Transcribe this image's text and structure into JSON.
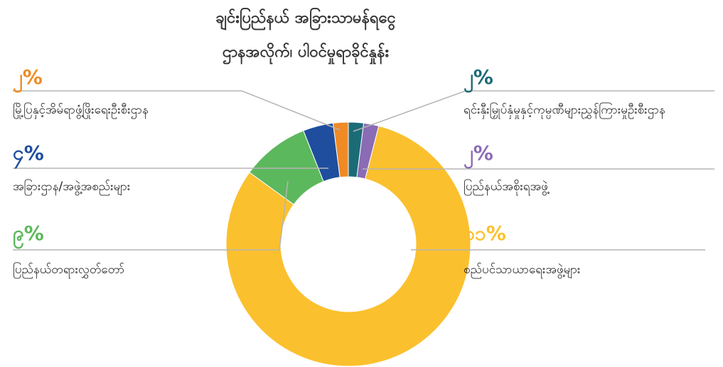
{
  "chart_data": {
    "type": "donut",
    "title": [
      "ချင်းပြည်နယ် အခြားသာမန်ရငွေ",
      "ဌာနအလိုက်၊ ပါဝင်မှုရာခိုင်နှုန်း"
    ],
    "categories": [
      "ရင်းနှီးမြှုပ်နှံမှုနှင့်ကုမ္ပဏီများညွှန်ကြားမှုဦးစီးဌာန",
      "ပြည်နယ်အစိုးရအဖွဲ့",
      "စည်ပင်သာယာရေးအဖွဲ့များ",
      "ပြည်နယ်တရားလွှတ်တော်",
      "အခြားဌာန/အဖွဲ့အစည်းများ",
      "မြို့ပြနှင့်အိမ်ရာဖွံ့ဖြိုးရေးဦးစီးဌာန"
    ],
    "values": [
      2,
      2,
      81,
      9,
      4,
      2
    ],
    "value_labels": [
      "၂%",
      "၂%",
      "၈၁%",
      "၉%",
      "၄%",
      "၂%"
    ],
    "colors": [
      "#1b6b77",
      "#8a6bb5",
      "#fbc02d",
      "#5cb85c",
      "#1f4e9e",
      "#f08a24"
    ]
  }
}
